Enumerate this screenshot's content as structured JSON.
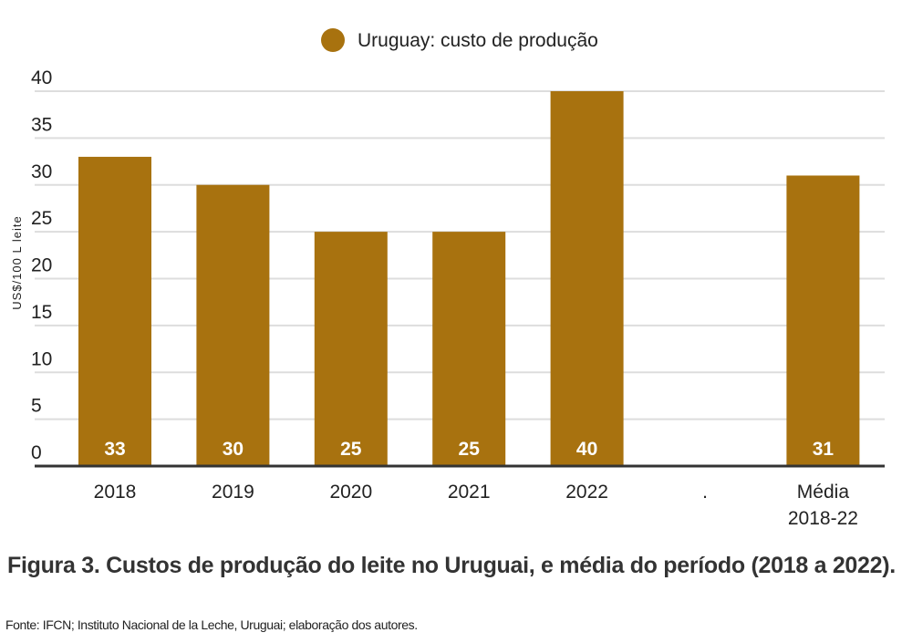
{
  "chart_data": {
    "type": "bar",
    "categories": [
      "2018",
      "2019",
      "2020",
      "2021",
      "2022",
      ".",
      "Média 2018-22"
    ],
    "series": [
      {
        "name": "Uruguay: custo de produção",
        "values": [
          33,
          30,
          25,
          25,
          40,
          null,
          31
        ],
        "data_labels": [
          "33",
          "30",
          "25",
          "25",
          "40",
          "",
          "31"
        ]
      }
    ],
    "ylabel": "US$/100 L leite",
    "xlabel": "",
    "ylim": [
      0,
      40
    ],
    "yticks": [
      0,
      5,
      10,
      15,
      20,
      25,
      30,
      35,
      40
    ],
    "grid": true,
    "legend_position": "top-center",
    "colors": {
      "bar": "#A8720F",
      "grid": "#dddddd",
      "axis": "#333333"
    }
  },
  "caption": "Figura 3. Custos de produção do leite no Uruguai, e média do período (2018 a 2022).",
  "source": "Fonte: IFCN; Instituto Nacional de la Leche, Uruguai; elaboração dos autores."
}
